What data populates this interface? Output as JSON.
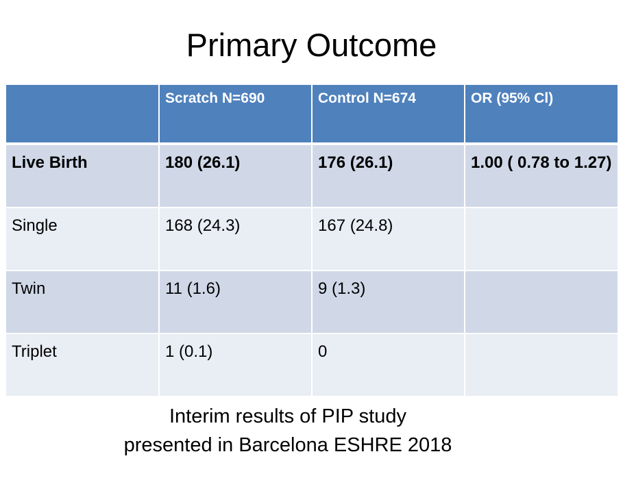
{
  "title": "Primary Outcome",
  "table": {
    "headers": [
      "",
      "Scratch N=690",
      "Control N=674",
      "OR (95% Cl)"
    ],
    "rows": [
      [
        "Live Birth",
        "180 (26.1)",
        "176 (26.1)",
        "1.00 ( 0.78 to 1.27)"
      ],
      [
        "Single",
        "168 (24.3)",
        "167 (24.8)",
        ""
      ],
      [
        "Twin",
        "11 (1.6)",
        "9 (1.3)",
        ""
      ],
      [
        "Triplet",
        "1 (0.1)",
        "0",
        ""
      ]
    ]
  },
  "caption": {
    "line1": "Interim results of PIP study",
    "line2": "presented in Barcelona ESHRE 2018"
  },
  "colors": {
    "header_bg": "#4f81bd",
    "row_band_dark": "#d0d8e8",
    "row_band_light": "#e9edf4"
  }
}
